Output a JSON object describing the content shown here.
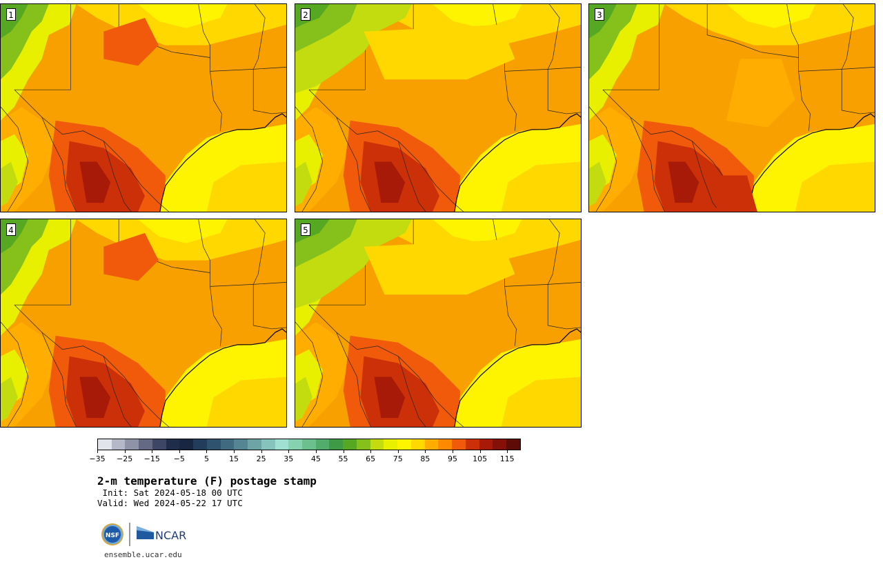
{
  "panels": [
    {
      "label": "1"
    },
    {
      "label": "2"
    },
    {
      "label": "3"
    },
    {
      "label": "4"
    },
    {
      "label": "5"
    }
  ],
  "colorbar": {
    "colors": [
      "#e2e4ec",
      "#b5b8c8",
      "#8e93a8",
      "#646a84",
      "#3d4664",
      "#1f2d4a",
      "#182642",
      "#223c5c",
      "#2f536e",
      "#3f6a80",
      "#558592",
      "#6ea4a6",
      "#86c3bc",
      "#9fe0d2",
      "#86d2b0",
      "#6cc08e",
      "#52ad6c",
      "#3f9a45",
      "#56a822",
      "#86c01a",
      "#c2dc10",
      "#e8f000",
      "#fff400",
      "#ffd800",
      "#ffae00",
      "#ff8a00",
      "#f05a0a",
      "#cc3008",
      "#a81a08",
      "#841008",
      "#5e0a06"
    ],
    "tick_labels": [
      "−35",
      "−25",
      "−15",
      "−5",
      "5",
      "15",
      "25",
      "35",
      "45",
      "55",
      "65",
      "75",
      "85",
      "95",
      "105",
      "115"
    ]
  },
  "title": "2-m temperature (F) postage stamp",
  "init_line": " Init: Sat 2024-05-18 00 UTC",
  "valid_line": "Valid: Wed 2024-05-22 17 UTC",
  "logos": {
    "left": "NSF",
    "right": "NCAR"
  },
  "site": "ensemble.ucar.edu"
}
